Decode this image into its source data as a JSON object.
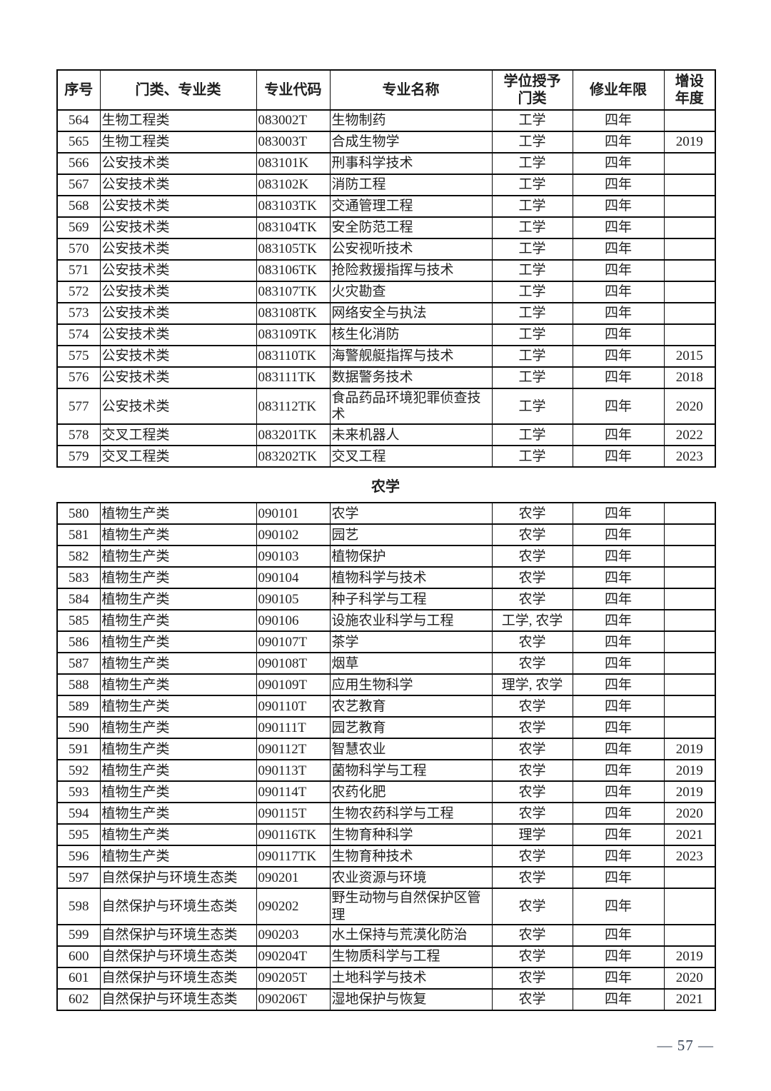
{
  "page": {
    "footer_page_number": "— 57 —"
  },
  "table": {
    "headers": [
      "序号",
      "门类、专业类",
      "专业代码",
      "专业名称",
      "学位授予\n门类",
      "修业年限",
      "增设\n年度"
    ],
    "sections": [
      {
        "title": "",
        "rows": [
          {
            "no": "564",
            "category": "生物工程类",
            "code": "083002T",
            "name": "生物制药",
            "degree": "工学",
            "years": "四年",
            "year_added": ""
          },
          {
            "no": "565",
            "category": "生物工程类",
            "code": "083003T",
            "name": "合成生物学",
            "degree": "工学",
            "years": "四年",
            "year_added": "2019"
          },
          {
            "no": "566",
            "category": "公安技术类",
            "code": "083101K",
            "name": "刑事科学技术",
            "degree": "工学",
            "years": "四年",
            "year_added": ""
          },
          {
            "no": "567",
            "category": "公安技术类",
            "code": "083102K",
            "name": "消防工程",
            "degree": "工学",
            "years": "四年",
            "year_added": ""
          },
          {
            "no": "568",
            "category": "公安技术类",
            "code": "083103TK",
            "name": "交通管理工程",
            "degree": "工学",
            "years": "四年",
            "year_added": ""
          },
          {
            "no": "569",
            "category": "公安技术类",
            "code": "083104TK",
            "name": "安全防范工程",
            "degree": "工学",
            "years": "四年",
            "year_added": ""
          },
          {
            "no": "570",
            "category": "公安技术类",
            "code": "083105TK",
            "name": "公安视听技术",
            "degree": "工学",
            "years": "四年",
            "year_added": ""
          },
          {
            "no": "571",
            "category": "公安技术类",
            "code": "083106TK",
            "name": "抢险救援指挥与技术",
            "degree": "工学",
            "years": "四年",
            "year_added": ""
          },
          {
            "no": "572",
            "category": "公安技术类",
            "code": "083107TK",
            "name": "火灾勘查",
            "degree": "工学",
            "years": "四年",
            "year_added": ""
          },
          {
            "no": "573",
            "category": "公安技术类",
            "code": "083108TK",
            "name": "网络安全与执法",
            "degree": "工学",
            "years": "四年",
            "year_added": ""
          },
          {
            "no": "574",
            "category": "公安技术类",
            "code": "083109TK",
            "name": "核生化消防",
            "degree": "工学",
            "years": "四年",
            "year_added": ""
          },
          {
            "no": "575",
            "category": "公安技术类",
            "code": "083110TK",
            "name": "海警舰艇指挥与技术",
            "degree": "工学",
            "years": "四年",
            "year_added": "2015"
          },
          {
            "no": "576",
            "category": "公安技术类",
            "code": "083111TK",
            "name": "数据警务技术",
            "degree": "工学",
            "years": "四年",
            "year_added": "2018"
          },
          {
            "no": "577",
            "category": "公安技术类",
            "code": "083112TK",
            "name": "食品药品环境犯罪侦查技术",
            "degree": "工学",
            "years": "四年",
            "year_added": "2020"
          },
          {
            "no": "578",
            "category": "交叉工程类",
            "code": "083201TK",
            "name": "未来机器人",
            "degree": "工学",
            "years": "四年",
            "year_added": "2022"
          },
          {
            "no": "579",
            "category": "交叉工程类",
            "code": "083202TK",
            "name": "交叉工程",
            "degree": "工学",
            "years": "四年",
            "year_added": "2023"
          }
        ]
      },
      {
        "title": "农学",
        "rows": [
          {
            "no": "580",
            "category": "植物生产类",
            "code": "090101",
            "name": "农学",
            "degree": "农学",
            "years": "四年",
            "year_added": ""
          },
          {
            "no": "581",
            "category": "植物生产类",
            "code": "090102",
            "name": "园艺",
            "degree": "农学",
            "years": "四年",
            "year_added": ""
          },
          {
            "no": "582",
            "category": "植物生产类",
            "code": "090103",
            "name": "植物保护",
            "degree": "农学",
            "years": "四年",
            "year_added": ""
          },
          {
            "no": "583",
            "category": "植物生产类",
            "code": "090104",
            "name": "植物科学与技术",
            "degree": "农学",
            "years": "四年",
            "year_added": ""
          },
          {
            "no": "584",
            "category": "植物生产类",
            "code": "090105",
            "name": "种子科学与工程",
            "degree": "农学",
            "years": "四年",
            "year_added": ""
          },
          {
            "no": "585",
            "category": "植物生产类",
            "code": "090106",
            "name": "设施农业科学与工程",
            "degree": "工学, 农学",
            "years": "四年",
            "year_added": ""
          },
          {
            "no": "586",
            "category": "植物生产类",
            "code": "090107T",
            "name": "茶学",
            "degree": "农学",
            "years": "四年",
            "year_added": ""
          },
          {
            "no": "587",
            "category": "植物生产类",
            "code": "090108T",
            "name": "烟草",
            "degree": "农学",
            "years": "四年",
            "year_added": ""
          },
          {
            "no": "588",
            "category": "植物生产类",
            "code": "090109T",
            "name": "应用生物科学",
            "degree": "理学, 农学",
            "years": "四年",
            "year_added": ""
          },
          {
            "no": "589",
            "category": "植物生产类",
            "code": "090110T",
            "name": "农艺教育",
            "degree": "农学",
            "years": "四年",
            "year_added": ""
          },
          {
            "no": "590",
            "category": "植物生产类",
            "code": "090111T",
            "name": "园艺教育",
            "degree": "农学",
            "years": "四年",
            "year_added": ""
          },
          {
            "no": "591",
            "category": "植物生产类",
            "code": "090112T",
            "name": "智慧农业",
            "degree": "农学",
            "years": "四年",
            "year_added": "2019"
          },
          {
            "no": "592",
            "category": "植物生产类",
            "code": "090113T",
            "name": "菌物科学与工程",
            "degree": "农学",
            "years": "四年",
            "year_added": "2019"
          },
          {
            "no": "593",
            "category": "植物生产类",
            "code": "090114T",
            "name": "农药化肥",
            "degree": "农学",
            "years": "四年",
            "year_added": "2019"
          },
          {
            "no": "594",
            "category": "植物生产类",
            "code": "090115T",
            "name": "生物农药科学与工程",
            "degree": "农学",
            "years": "四年",
            "year_added": "2020"
          },
          {
            "no": "595",
            "category": "植物生产类",
            "code": "090116TK",
            "name": "生物育种科学",
            "degree": "理学",
            "years": "四年",
            "year_added": "2021"
          },
          {
            "no": "596",
            "category": "植物生产类",
            "code": "090117TK",
            "name": "生物育种技术",
            "degree": "农学",
            "years": "四年",
            "year_added": "2023"
          },
          {
            "no": "597",
            "category": "自然保护与环境生态类",
            "code": "090201",
            "name": "农业资源与环境",
            "degree": "农学",
            "years": "四年",
            "year_added": ""
          },
          {
            "no": "598",
            "category": "自然保护与环境生态类",
            "code": "090202",
            "name": "野生动物与自然保护区管理",
            "degree": "农学",
            "years": "四年",
            "year_added": ""
          },
          {
            "no": "599",
            "category": "自然保护与环境生态类",
            "code": "090203",
            "name": "水土保持与荒漠化防治",
            "degree": "农学",
            "years": "四年",
            "year_added": ""
          },
          {
            "no": "600",
            "category": "自然保护与环境生态类",
            "code": "090204T",
            "name": "生物质科学与工程",
            "degree": "农学",
            "years": "四年",
            "year_added": "2019"
          },
          {
            "no": "601",
            "category": "自然保护与环境生态类",
            "code": "090205T",
            "name": "土地科学与技术",
            "degree": "农学",
            "years": "四年",
            "year_added": "2020"
          },
          {
            "no": "602",
            "category": "自然保护与环境生态类",
            "code": "090206T",
            "name": "湿地保护与恢复",
            "degree": "农学",
            "years": "四年",
            "year_added": "2021"
          }
        ]
      }
    ]
  }
}
